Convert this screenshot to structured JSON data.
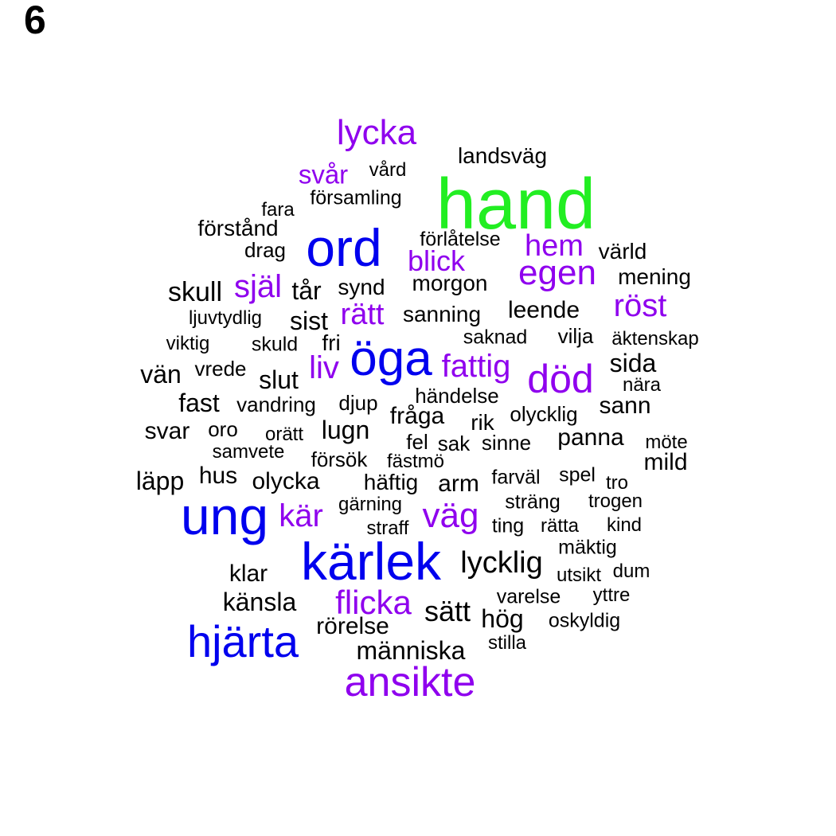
{
  "panel_number": "6",
  "colors": {
    "green": "#22ee22",
    "blue": "#0000ee",
    "purple": "#8f00ee",
    "black": "#000000"
  },
  "words": [
    {
      "text": "hand",
      "color": "green"
    },
    {
      "text": "ord",
      "color": "blue"
    },
    {
      "text": "öga",
      "color": "blue"
    },
    {
      "text": "ung",
      "color": "blue"
    },
    {
      "text": "kärlek",
      "color": "blue"
    },
    {
      "text": "hjärta",
      "color": "blue"
    },
    {
      "text": "lycka",
      "color": "purple"
    },
    {
      "text": "svår",
      "color": "purple"
    },
    {
      "text": "hem",
      "color": "purple"
    },
    {
      "text": "blick",
      "color": "purple"
    },
    {
      "text": "egen",
      "color": "purple"
    },
    {
      "text": "själ",
      "color": "purple"
    },
    {
      "text": "rätt",
      "color": "purple"
    },
    {
      "text": "röst",
      "color": "purple"
    },
    {
      "text": "liv",
      "color": "purple"
    },
    {
      "text": "fattig",
      "color": "purple"
    },
    {
      "text": "död",
      "color": "purple"
    },
    {
      "text": "kär",
      "color": "purple"
    },
    {
      "text": "väg",
      "color": "purple"
    },
    {
      "text": "flicka",
      "color": "purple"
    },
    {
      "text": "ansikte",
      "color": "purple"
    },
    {
      "text": "landsväg",
      "color": "black"
    },
    {
      "text": "vård",
      "color": "black"
    },
    {
      "text": "församling",
      "color": "black"
    },
    {
      "text": "fara",
      "color": "black"
    },
    {
      "text": "förstånd",
      "color": "black"
    },
    {
      "text": "drag",
      "color": "black"
    },
    {
      "text": "förlåtelse",
      "color": "black"
    },
    {
      "text": "värld",
      "color": "black"
    },
    {
      "text": "skull",
      "color": "black"
    },
    {
      "text": "tår",
      "color": "black"
    },
    {
      "text": "synd",
      "color": "black"
    },
    {
      "text": "morgon",
      "color": "black"
    },
    {
      "text": "mening",
      "color": "black"
    },
    {
      "text": "ljuvtydlig",
      "color": "black"
    },
    {
      "text": "sist",
      "color": "black"
    },
    {
      "text": "sanning",
      "color": "black"
    },
    {
      "text": "leende",
      "color": "black"
    },
    {
      "text": "viktig",
      "color": "black"
    },
    {
      "text": "skuld",
      "color": "black"
    },
    {
      "text": "fri",
      "color": "black"
    },
    {
      "text": "saknad",
      "color": "black"
    },
    {
      "text": "vilja",
      "color": "black"
    },
    {
      "text": "äktenskap",
      "color": "black"
    },
    {
      "text": "vän",
      "color": "black"
    },
    {
      "text": "vrede",
      "color": "black"
    },
    {
      "text": "slut",
      "color": "black"
    },
    {
      "text": "sida",
      "color": "black"
    },
    {
      "text": "nära",
      "color": "black"
    },
    {
      "text": "fast",
      "color": "black"
    },
    {
      "text": "vandring",
      "color": "black"
    },
    {
      "text": "djup",
      "color": "black"
    },
    {
      "text": "händelse",
      "color": "black"
    },
    {
      "text": "sann",
      "color": "black"
    },
    {
      "text": "fråga",
      "color": "black"
    },
    {
      "text": "rik",
      "color": "black"
    },
    {
      "text": "olycklig",
      "color": "black"
    },
    {
      "text": "svar",
      "color": "black"
    },
    {
      "text": "oro",
      "color": "black"
    },
    {
      "text": "orätt",
      "color": "black"
    },
    {
      "text": "lugn",
      "color": "black"
    },
    {
      "text": "fel",
      "color": "black"
    },
    {
      "text": "sak",
      "color": "black"
    },
    {
      "text": "sinne",
      "color": "black"
    },
    {
      "text": "panna",
      "color": "black"
    },
    {
      "text": "möte",
      "color": "black"
    },
    {
      "text": "samvete",
      "color": "black"
    },
    {
      "text": "försök",
      "color": "black"
    },
    {
      "text": "fästmö",
      "color": "black"
    },
    {
      "text": "mild",
      "color": "black"
    },
    {
      "text": "läpp",
      "color": "black"
    },
    {
      "text": "hus",
      "color": "black"
    },
    {
      "text": "olycka",
      "color": "black"
    },
    {
      "text": "häftig",
      "color": "black"
    },
    {
      "text": "arm",
      "color": "black"
    },
    {
      "text": "farväl",
      "color": "black"
    },
    {
      "text": "spel",
      "color": "black"
    },
    {
      "text": "tro",
      "color": "black"
    },
    {
      "text": "gärning",
      "color": "black"
    },
    {
      "text": "sträng",
      "color": "black"
    },
    {
      "text": "trogen",
      "color": "black"
    },
    {
      "text": "straff",
      "color": "black"
    },
    {
      "text": "ting",
      "color": "black"
    },
    {
      "text": "rätta",
      "color": "black"
    },
    {
      "text": "kind",
      "color": "black"
    },
    {
      "text": "mäktig",
      "color": "black"
    },
    {
      "text": "klar",
      "color": "black"
    },
    {
      "text": "lycklig",
      "color": "black"
    },
    {
      "text": "utsikt",
      "color": "black"
    },
    {
      "text": "dum",
      "color": "black"
    },
    {
      "text": "känsla",
      "color": "black"
    },
    {
      "text": "varelse",
      "color": "black"
    },
    {
      "text": "yttre",
      "color": "black"
    },
    {
      "text": "sätt",
      "color": "black"
    },
    {
      "text": "hög",
      "color": "black"
    },
    {
      "text": "oskyldig",
      "color": "black"
    },
    {
      "text": "rörelse",
      "color": "black"
    },
    {
      "text": "stilla",
      "color": "black"
    },
    {
      "text": "människa",
      "color": "black"
    }
  ]
}
